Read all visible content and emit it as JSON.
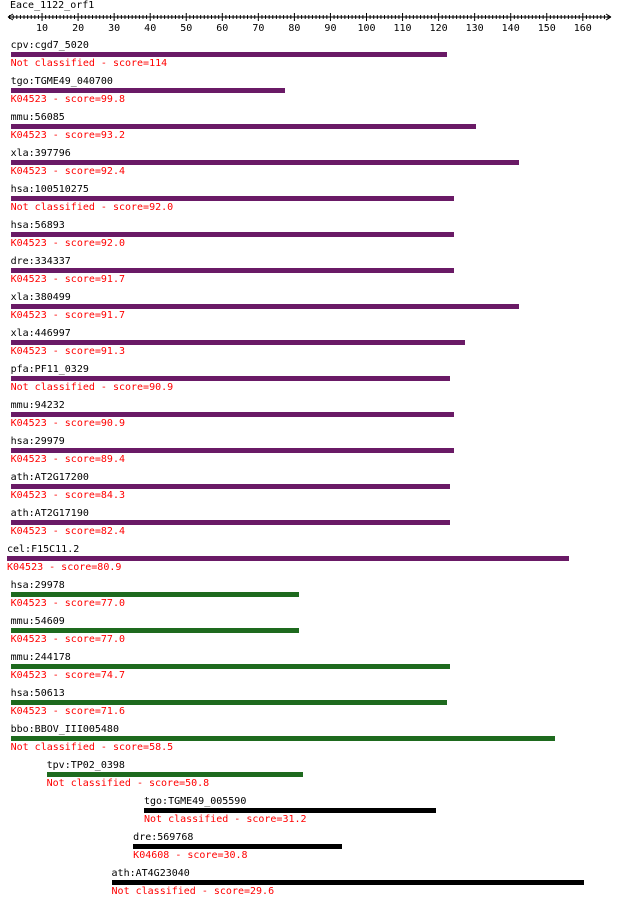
{
  "query": {
    "title": "Eace_1122_orf1"
  },
  "ruler": {
    "ticks": [
      "10",
      "20",
      "30",
      "40",
      "50",
      "60",
      "70",
      "80",
      "90",
      "100",
      "110",
      "120",
      "130",
      "140",
      "150",
      "160"
    ]
  },
  "colors": {
    "purple": "#6a1a66",
    "green": "#1e6a1e",
    "black": "#000000",
    "classText": "#ff0000"
  },
  "hits": [
    {
      "name": "cpv:cgd7_5020",
      "classification": "Not classified - score=114",
      "start": 1,
      "end": 122,
      "color": "purple"
    },
    {
      "name": "tgo:TGME49_040700",
      "classification": "K04523 - score=99.8",
      "start": 1,
      "end": 77,
      "color": "purple"
    },
    {
      "name": "mmu:56085",
      "classification": "K04523 - score=93.2",
      "start": 1,
      "end": 130,
      "color": "purple"
    },
    {
      "name": "xla:397796",
      "classification": "K04523 - score=92.4",
      "start": 1,
      "end": 142,
      "color": "purple"
    },
    {
      "name": "hsa:100510275",
      "classification": "Not classified - score=92.0",
      "start": 1,
      "end": 124,
      "color": "purple"
    },
    {
      "name": "hsa:56893",
      "classification": "K04523 - score=92.0",
      "start": 1,
      "end": 124,
      "color": "purple"
    },
    {
      "name": "dre:334337",
      "classification": "K04523 - score=91.7",
      "start": 1,
      "end": 124,
      "color": "purple"
    },
    {
      "name": "xla:380499",
      "classification": "K04523 - score=91.7",
      "start": 1,
      "end": 142,
      "color": "purple"
    },
    {
      "name": "xla:446997",
      "classification": "K04523 - score=91.3",
      "start": 1,
      "end": 127,
      "color": "purple"
    },
    {
      "name": "pfa:PF11_0329",
      "classification": "Not classified - score=90.9",
      "start": 1,
      "end": 123,
      "color": "purple"
    },
    {
      "name": "mmu:94232",
      "classification": "K04523 - score=90.9",
      "start": 1,
      "end": 124,
      "color": "purple"
    },
    {
      "name": "hsa:29979",
      "classification": "K04523 - score=89.4",
      "start": 1,
      "end": 124,
      "color": "purple"
    },
    {
      "name": "ath:AT2G17200",
      "classification": "K04523 - score=84.3",
      "start": 1,
      "end": 123,
      "color": "purple"
    },
    {
      "name": "ath:AT2G17190",
      "classification": "K04523 - score=82.4",
      "start": 1,
      "end": 123,
      "color": "purple"
    },
    {
      "name": "cel:F15C11.2",
      "classification": "K04523 - score=80.9",
      "start": 0,
      "end": 156,
      "color": "purple"
    },
    {
      "name": "hsa:29978",
      "classification": "K04523 - score=77.0",
      "start": 1,
      "end": 81,
      "color": "green"
    },
    {
      "name": "mmu:54609",
      "classification": "K04523 - score=77.0",
      "start": 1,
      "end": 81,
      "color": "green"
    },
    {
      "name": "mmu:244178",
      "classification": "K04523 - score=74.7",
      "start": 1,
      "end": 123,
      "color": "green"
    },
    {
      "name": "hsa:50613",
      "classification": "K04523 - score=71.6",
      "start": 1,
      "end": 122,
      "color": "green"
    },
    {
      "name": "bbo:BBOV_III005480",
      "classification": "Not classified - score=58.5",
      "start": 1,
      "end": 152,
      "color": "green"
    },
    {
      "name": "tpv:TP02_0398",
      "classification": "Not classified - score=50.8",
      "start": 11,
      "end": 82,
      "color": "green"
    },
    {
      "name": "tgo:TGME49_005590",
      "classification": "Not classified - score=31.2",
      "start": 38,
      "end": 119,
      "color": "black"
    },
    {
      "name": "dre:569768",
      "classification": "K04608 - score=30.8",
      "start": 35,
      "end": 93,
      "color": "black"
    },
    {
      "name": "ath:AT4G23040",
      "classification": "Not classified - score=29.6",
      "start": 29,
      "end": 160,
      "color": "black"
    }
  ]
}
